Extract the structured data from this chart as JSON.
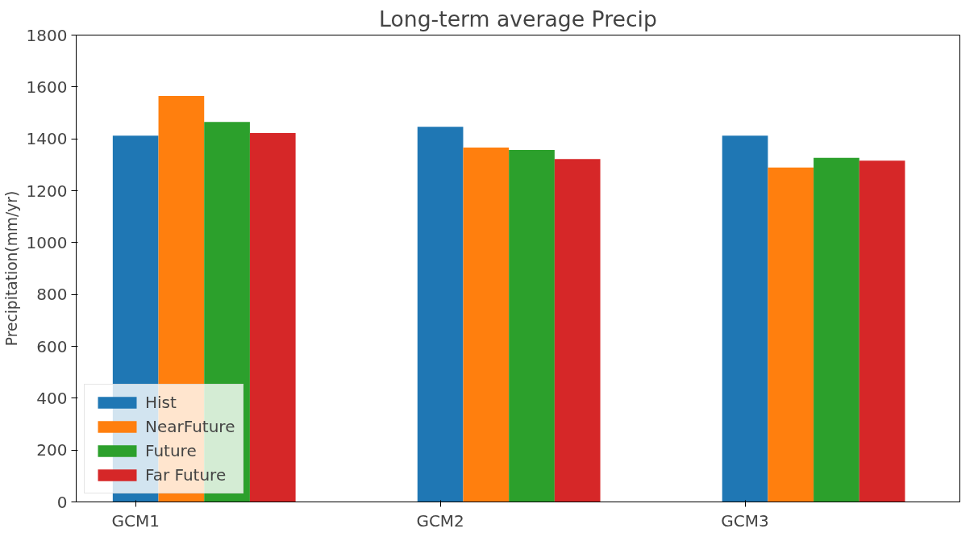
{
  "chart_data": {
    "type": "bar",
    "title": "Long-term average Precip",
    "ylabel": "Precipitation(mm/yr)",
    "categories": [
      "GCM1",
      "GCM2",
      "GCM3"
    ],
    "series": [
      {
        "name": "Hist",
        "color": "#1f77b4",
        "values": [
          1412,
          1446,
          1412
        ]
      },
      {
        "name": "NearFuture",
        "color": "#ff7f0e",
        "values": [
          1565,
          1366,
          1289
        ]
      },
      {
        "name": "Future",
        "color": "#2ca02c",
        "values": [
          1465,
          1357,
          1327
        ]
      },
      {
        "name": "Far Future",
        "color": "#d62728",
        "values": [
          1422,
          1322,
          1316
        ]
      }
    ],
    "ylim": [
      0,
      1800
    ],
    "yticks": [
      0,
      200,
      400,
      600,
      800,
      1000,
      1200,
      1400,
      1600,
      1800
    ],
    "grid": false,
    "legend": "bottom left"
  }
}
